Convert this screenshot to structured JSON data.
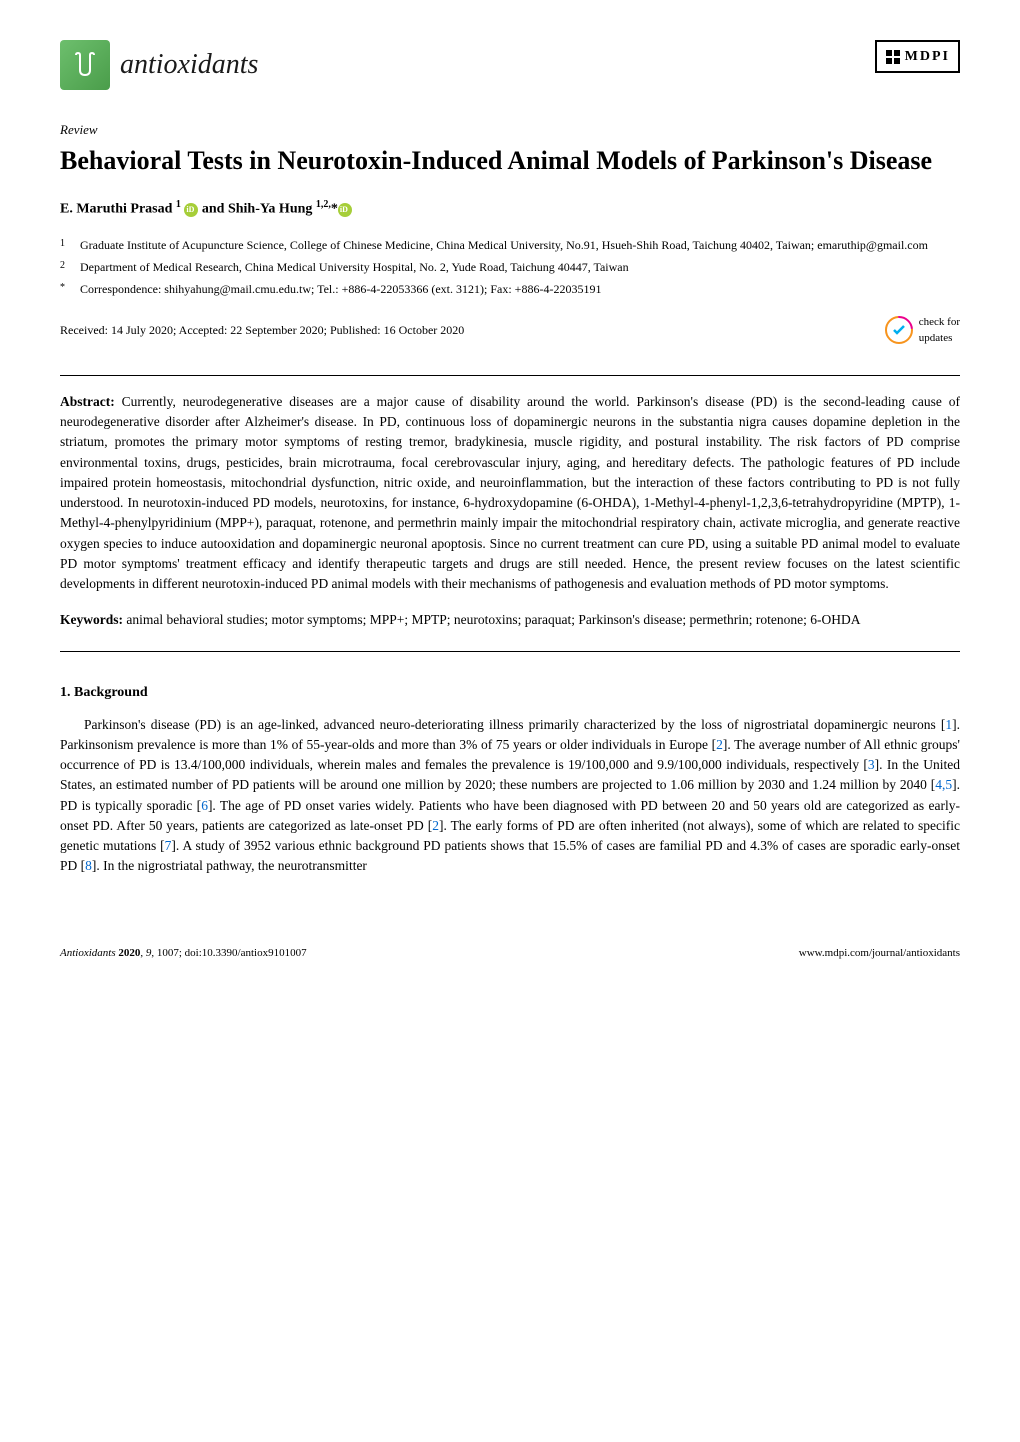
{
  "journal": {
    "name": "antioxidants",
    "logo_bg_color": "#6dbf6d",
    "publisher": "MDPI"
  },
  "article": {
    "type": "Review",
    "title": "Behavioral Tests in Neurotoxin-Induced Animal Models of Parkinson's Disease",
    "authors_html": "E. Maruthi Prasad <sup>1</sup> <span class='orcid'></span> and Shih-Ya Hung <sup>1,2,</sup>*<span class='orcid'></span>",
    "affiliations": [
      {
        "num": "1",
        "text": "Graduate Institute of Acupuncture Science, College of Chinese Medicine, China Medical University, No.91, Hsueh-Shih Road, Taichung 40402, Taiwan; emaruthip@gmail.com"
      },
      {
        "num": "2",
        "text": "Department of Medical Research, China Medical University Hospital, No. 2, Yude Road, Taichung 40447, Taiwan"
      },
      {
        "num": "*",
        "text": "Correspondence: shihyahung@mail.cmu.edu.tw; Tel.: +886-4-22053366 (ext. 3121); Fax: +886-4-22035191"
      }
    ],
    "dates": "Received: 14 July 2020; Accepted: 22 September 2020; Published: 16 October 2020",
    "check_updates_label": "check for\nupdates"
  },
  "abstract": {
    "label": "Abstract:",
    "text": "Currently, neurodegenerative diseases are a major cause of disability around the world. Parkinson's disease (PD) is the second-leading cause of neurodegenerative disorder after Alzheimer's disease. In PD, continuous loss of dopaminergic neurons in the substantia nigra causes dopamine depletion in the striatum, promotes the primary motor symptoms of resting tremor, bradykinesia, muscle rigidity, and postural instability. The risk factors of PD comprise environmental toxins, drugs, pesticides, brain microtrauma, focal cerebrovascular injury, aging, and hereditary defects. The pathologic features of PD include impaired protein homeostasis, mitochondrial dysfunction, nitric oxide, and neuroinflammation, but the interaction of these factors contributing to PD is not fully understood. In neurotoxin-induced PD models, neurotoxins, for instance, 6-hydroxydopamine (6-OHDA), 1-Methyl-4-phenyl-1,2,3,6-tetrahydropyridine (MPTP), 1-Methyl-4-phenylpyridinium (MPP+), paraquat, rotenone, and permethrin mainly impair the mitochondrial respiratory chain, activate microglia, and generate reactive oxygen species to induce autooxidation and dopaminergic neuronal apoptosis. Since no current treatment can cure PD, using a suitable PD animal model to evaluate PD motor symptoms' treatment efficacy and identify therapeutic targets and drugs are still needed. Hence, the present review focuses on the latest scientific developments in different neurotoxin-induced PD animal models with their mechanisms of pathogenesis and evaluation methods of PD motor symptoms."
  },
  "keywords": {
    "label": "Keywords:",
    "text": "animal behavioral studies; motor symptoms; MPP+; MPTP; neurotoxins; paraquat; Parkinson's disease; permethrin; rotenone; 6-OHDA"
  },
  "sections": {
    "background": {
      "heading": "1. Background",
      "paragraph": "Parkinson's disease (PD) is an age-linked, advanced neuro-deteriorating illness primarily characterized by the loss of nigrostriatal dopaminergic neurons [1]. Parkinsonism prevalence is more than 1% of 55-year-olds and more than 3% of 75 years or older individuals in Europe [2]. The average number of All ethnic groups' occurrence of PD is 13.4/100,000 individuals, wherein males and females the prevalence is 19/100,000 and 9.9/100,000 individuals, respectively [3]. In the United States, an estimated number of PD patients will be around one million by 2020; these numbers are projected to 1.06 million by 2030 and 1.24 million by 2040 [4,5]. PD is typically sporadic [6]. The age of PD onset varies widely. Patients who have been diagnosed with PD between 20 and 50 years old are categorized as early-onset PD. After 50 years, patients are categorized as late-onset PD [2]. The early forms of PD are often inherited (not always), some of which are related to specific genetic mutations [7]. A study of 3952 various ethnic background PD patients shows that 15.5% of cases are familial PD and 4.3% of cases are sporadic early-onset PD [8]. In the nigrostriatal pathway, the neurotransmitter"
    }
  },
  "footer": {
    "left": "Antioxidants 2020, 9, 1007; doi:10.3390/antiox9101007",
    "right": "www.mdpi.com/journal/antioxidants"
  },
  "colors": {
    "text": "#000000",
    "bg": "#ffffff",
    "ref_link": "#0066cc",
    "orcid": "#a6ce39",
    "rule": "#000000"
  },
  "typography": {
    "body_font": "Palatino Linotype, Palatino, Book Antiqua, Georgia, serif",
    "title_size_pt": 26,
    "body_size_pt": 13.5,
    "footer_size_pt": 11
  }
}
